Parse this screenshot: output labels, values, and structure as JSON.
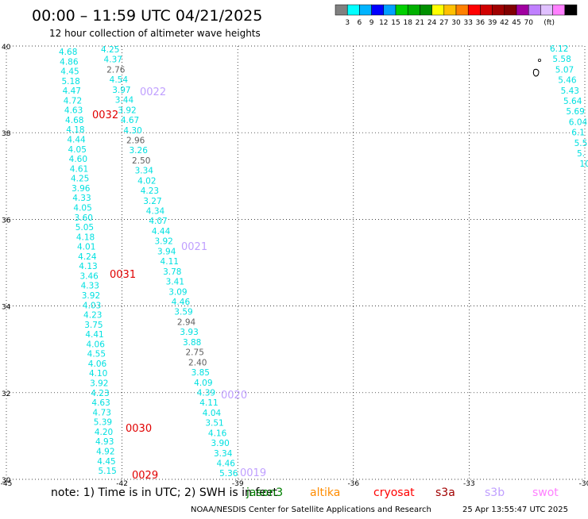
{
  "header": {
    "title": "00:00 – 11:59 UTC 04/21/2025",
    "subtitle": "12 hour collection of altimeter wave heights"
  },
  "colorbar": {
    "colors": [
      "#808080",
      "#00ffff",
      "#00b4ff",
      "#0000ff",
      "#00a0ff",
      "#00d000",
      "#00b000",
      "#009000",
      "#ffff00",
      "#ffc000",
      "#ff8000",
      "#ff0000",
      "#d00000",
      "#a00000",
      "#800000",
      "#a000a0",
      "#c080ff",
      "#e0c0ff",
      "#ff80ff",
      "#000000"
    ],
    "labels": [
      "3",
      "6",
      "9",
      "12",
      "15",
      "18",
      "21",
      "24",
      "27",
      "30",
      "33",
      "36",
      "39",
      "42",
      "45",
      "70"
    ],
    "unit": "(ft)"
  },
  "axes": {
    "lat_labels": [
      "40",
      "38",
      "36",
      "34",
      "32",
      "30"
    ],
    "lon_labels": [
      "-45",
      "-42",
      "-39",
      "-36",
      "-33",
      "-30"
    ],
    "lat_range": [
      30,
      40
    ],
    "lon_range": [
      -45,
      -30
    ]
  },
  "footer": {
    "note": "note:  1) Time is in UTC;  2) SWH is in feet",
    "credit": "NOAA/NESDIS Center for Satellite Applications and Research",
    "timestamp": "25 Apr 13:55:47 UTC 2025"
  },
  "legend": [
    {
      "name": "jason3",
      "color": "#008000"
    },
    {
      "name": "altika",
      "color": "#ff8c00"
    },
    {
      "name": "cryosat",
      "color": "#ff0000"
    },
    {
      "name": "s3a",
      "color": "#a00000"
    },
    {
      "name": "s3b",
      "color": "#c0a0ff"
    },
    {
      "name": "swot",
      "color": "#ff80ff"
    }
  ],
  "tracks": [
    {
      "id": "0032",
      "color": "#e00000"
    },
    {
      "id": "0022",
      "color": "#c0a0ff"
    },
    {
      "id": "0031",
      "color": "#e00000"
    },
    {
      "id": "0021",
      "color": "#c0a0ff"
    },
    {
      "id": "0030",
      "color": "#e00000"
    },
    {
      "id": "0020",
      "color": "#c0a0ff"
    },
    {
      "id": "0029",
      "color": "#e00000"
    },
    {
      "id": "0019",
      "color": "#c0a0ff"
    }
  ],
  "swh_colors": {
    "cyan": "#00e0e0",
    "gray": "#606060"
  },
  "track_a_values": [
    "4.68",
    "4.86",
    "4.45",
    "5.18",
    "4.47",
    "4.72",
    "4.63",
    "4.68",
    "4.18",
    "4.44",
    "4.05",
    "4.60",
    "4.61",
    "4.25",
    "3.96",
    "4.33",
    "4.05",
    "3.60",
    "5.05",
    "4.18",
    "4.01",
    "4.24",
    "4.13",
    "3.46",
    "4.33",
    "3.92",
    "4.03",
    "4.23",
    "3.75",
    "4.41",
    "4.06",
    "4.55",
    "4.06",
    "4.10",
    "3.92",
    "4.23",
    "4.63",
    "4.73",
    "5.39",
    "4.20",
    "4.93",
    "4.92",
    "4.45",
    "5.15"
  ],
  "track_b_values": [
    "4.25",
    "4.37",
    "2.76",
    "4.54",
    "3.97",
    "3.44",
    "3.92",
    "4.67",
    "4.30",
    "2.96",
    "3.26",
    "2.50",
    "3.34",
    "4.02",
    "4.23",
    "3.27",
    "4.34",
    "4.07",
    "4.44",
    "3.92",
    "3.94",
    "4.11",
    "3.78",
    "3.41",
    "3.09",
    "4.46",
    "3.59",
    "2.94",
    "3.93",
    "3.88",
    "2.75",
    "2.40",
    "3.85",
    "4.09",
    "4.39",
    "4.11",
    "4.04",
    "3.51",
    "4.16",
    "3.90",
    "3.34",
    "4.46",
    "5.36"
  ],
  "track_b_gray": [
    "2.76",
    "2.96",
    "2.50",
    "2.94",
    "2.75",
    "2.40"
  ],
  "track_c_values": [
    "6.12",
    "5.58",
    "5.07",
    "5.46",
    "5.43",
    "5.64",
    "5.69",
    "6.04",
    "6.1",
    "5.5",
    "5.",
    "10"
  ]
}
